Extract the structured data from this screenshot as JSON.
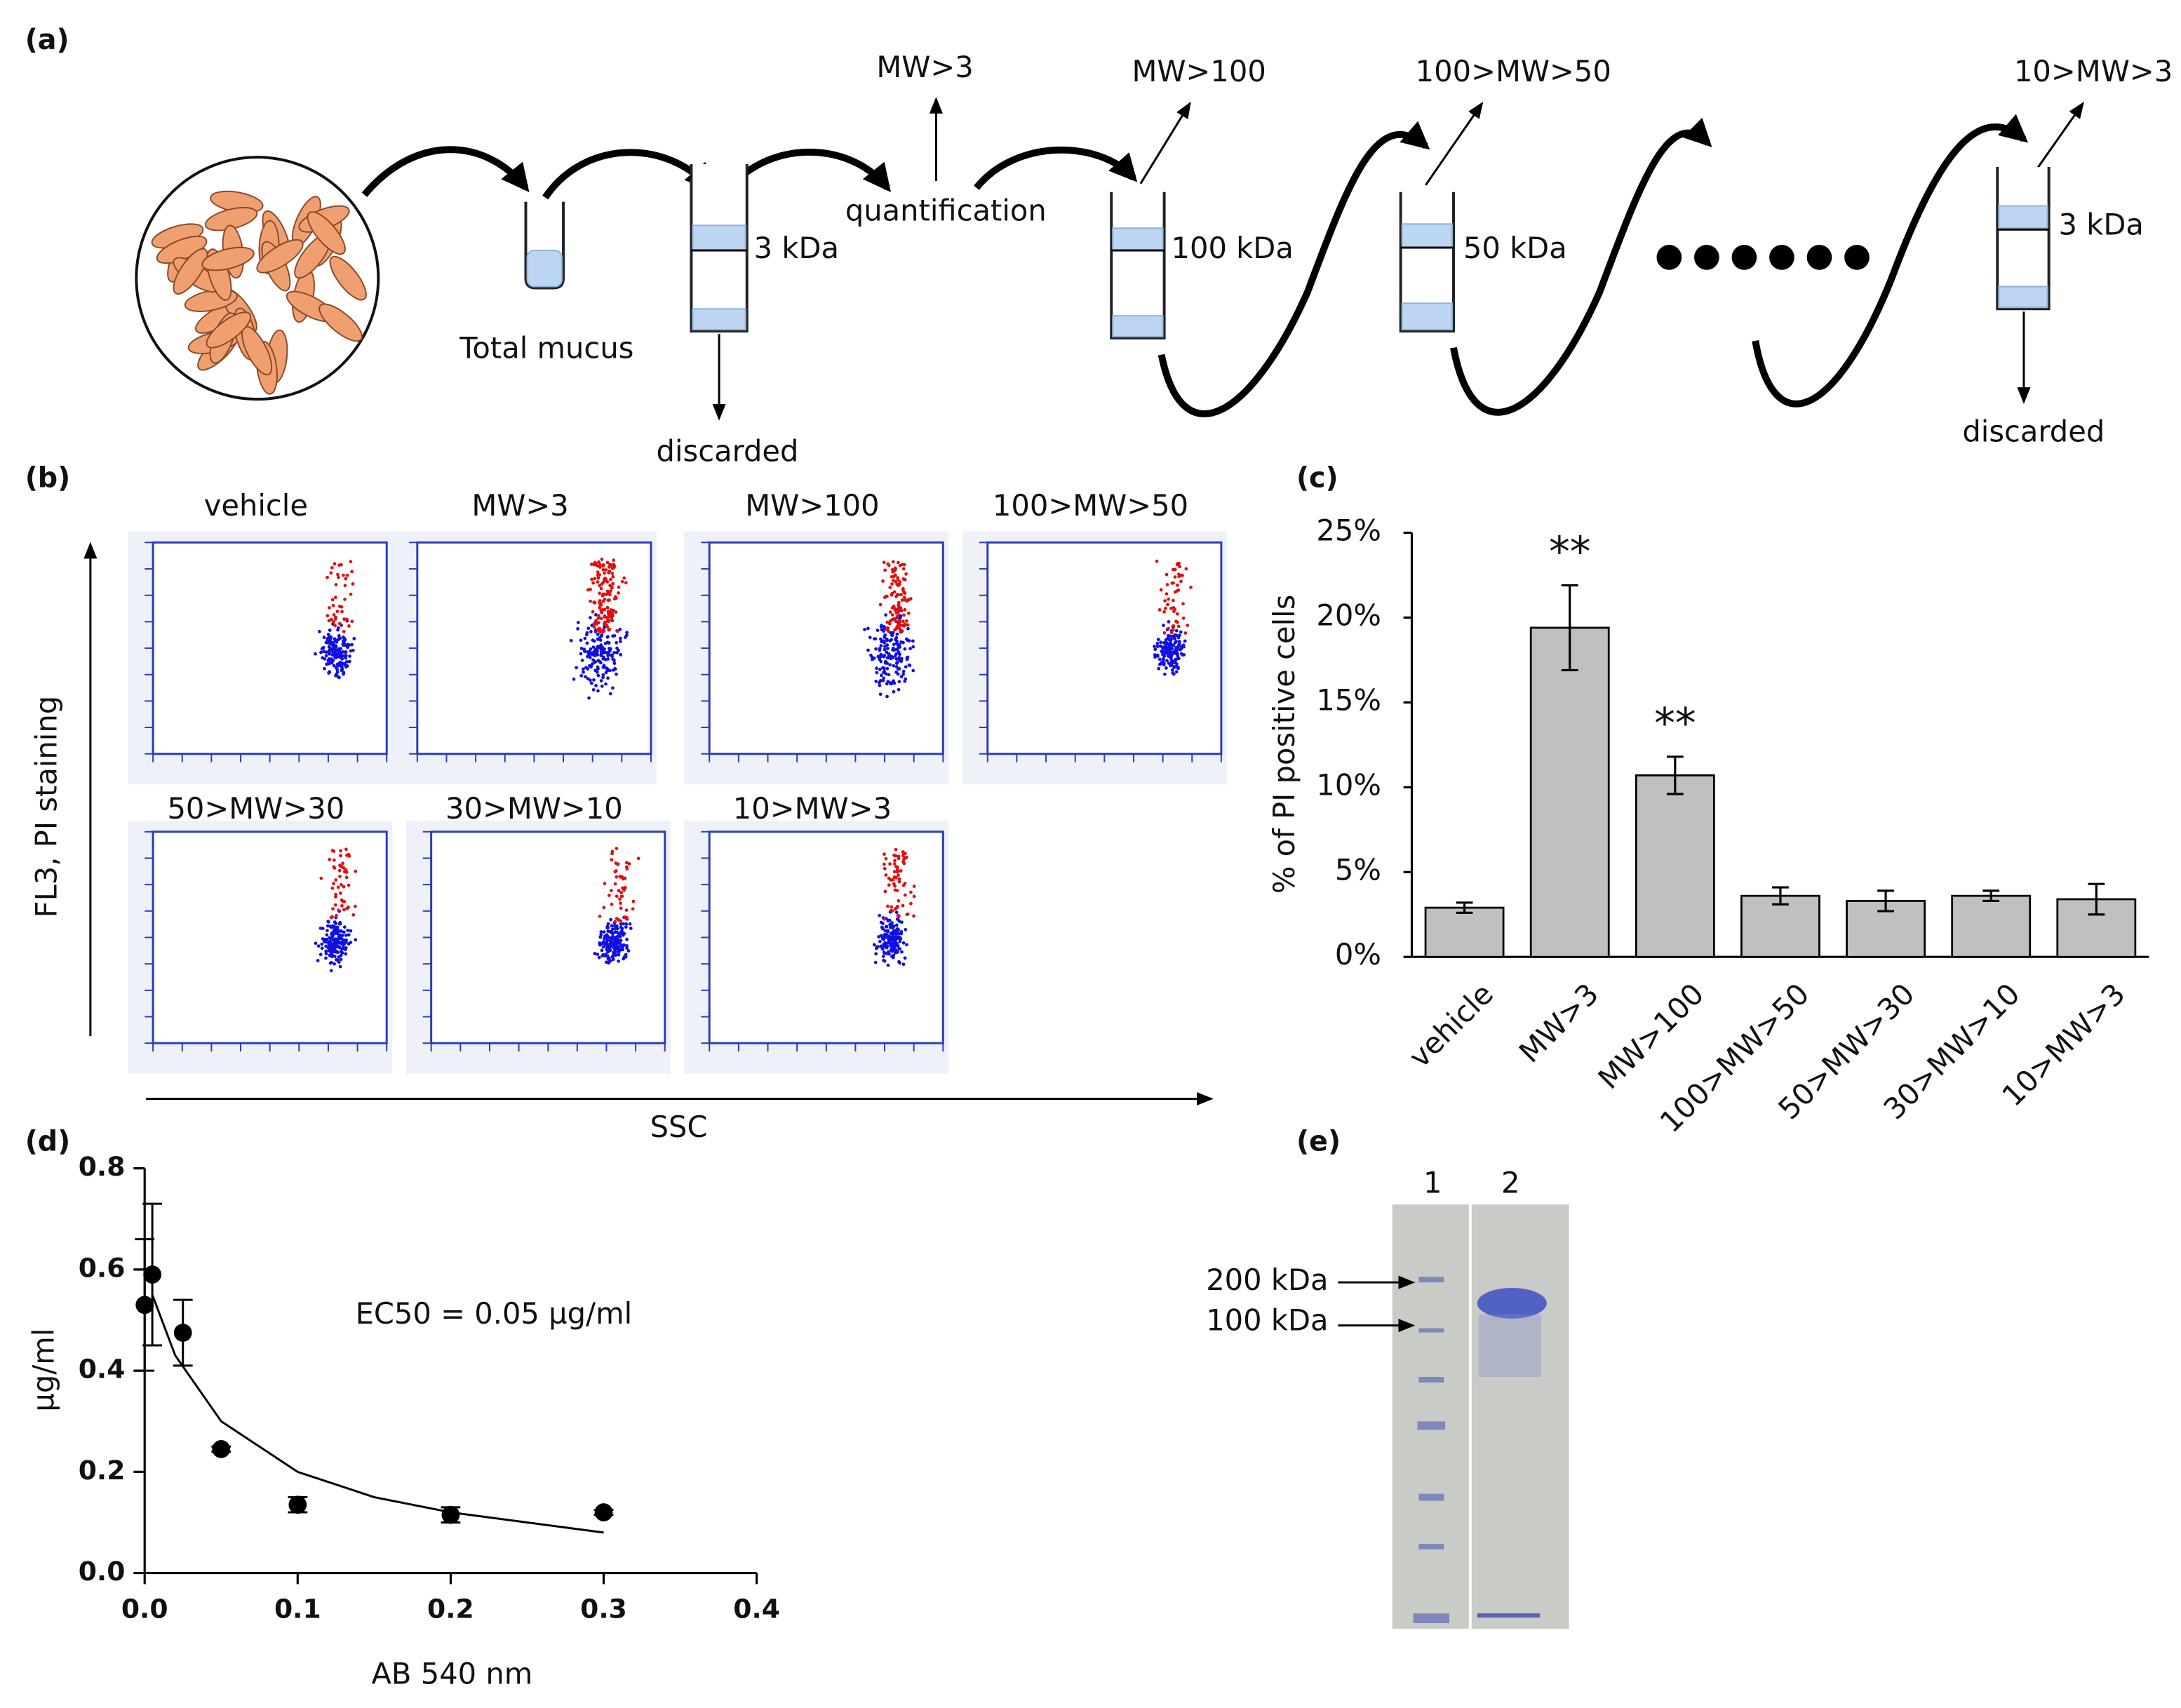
{
  "panels": {
    "a": {
      "label": "(a)",
      "total_mucus": "Total mucus",
      "quantification": "quantification",
      "outputs": [
        "MW>3",
        "MW>100",
        "100>MW>50",
        "10>MW>3"
      ],
      "membranes": [
        "3 kDa",
        "100 kDa",
        "50 kDa",
        "3 kDa"
      ],
      "discarded": [
        "discarded",
        "discarded"
      ]
    },
    "b": {
      "label": "(b)",
      "titles": [
        "vehicle",
        "MW>3",
        "MW>100",
        "100>MW>50",
        "50>MW>30",
        "30>MW>10",
        "10>MW>3"
      ],
      "y_axis": "FL3, PI staining",
      "x_axis": "SSC"
    },
    "e": {
      "label": "(e)",
      "lanes": [
        "1",
        "2"
      ],
      "markers": [
        "200 kDa",
        "100 kDa"
      ]
    }
  },
  "chart_data": [
    {
      "type": "bar",
      "panel_label": "(c)",
      "y_label": "% of PI positive cells",
      "categories": [
        "vehicle",
        "MW>3",
        "MW>100",
        "100>MW>50",
        "50>MW>30",
        "30>MW>10",
        "10>MW>3"
      ],
      "values": [
        2.9,
        19.4,
        10.7,
        3.6,
        3.3,
        3.6,
        3.4
      ],
      "errors": [
        0.3,
        2.5,
        1.1,
        0.5,
        0.6,
        0.3,
        0.9
      ],
      "significance": [
        null,
        "**",
        "**",
        null,
        null,
        null,
        null
      ],
      "color": "#c0c0c0",
      "ylim": [
        0,
        25
      ],
      "yticks": [
        {
          "value": 0,
          "label": "0%"
        },
        {
          "value": 5,
          "label": "5%"
        },
        {
          "value": 10,
          "label": "10%"
        },
        {
          "value": 15,
          "label": "15%"
        },
        {
          "value": 20,
          "label": "20%"
        },
        {
          "value": 25,
          "label": "25%"
        }
      ]
    },
    {
      "type": "scatter",
      "panel_label": "(d)",
      "x_label": "AB 540 nm",
      "y_label": "µg/ml",
      "annotation": "EC50 = 0.05 µg/ml",
      "x": [
        0,
        0.005,
        0.025,
        0.05,
        0.1,
        0.2,
        0.3
      ],
      "y": [
        0.53,
        0.59,
        0.475,
        0.245,
        0.135,
        0.115,
        0.12
      ],
      "errors": [
        0.13,
        0.14,
        0.065,
        0.005,
        0.015,
        0.015,
        0.005
      ],
      "fit": {
        "x": [
          0.005,
          0.02,
          0.05,
          0.1,
          0.15,
          0.2,
          0.25,
          0.3
        ],
        "y": [
          0.55,
          0.43,
          0.3,
          0.2,
          0.15,
          0.12,
          0.1,
          0.08
        ]
      },
      "color": "#000000",
      "xlim": [
        0,
        0.4
      ],
      "ylim": [
        0,
        0.8
      ],
      "xticks": [
        {
          "value": 0,
          "label": "0.0"
        },
        0.1,
        0.2,
        0.3,
        0.4
      ],
      "yticks": [
        {
          "value": 0,
          "label": "0.0"
        },
        0.2,
        0.4,
        0.6,
        0.8
      ]
    }
  ]
}
